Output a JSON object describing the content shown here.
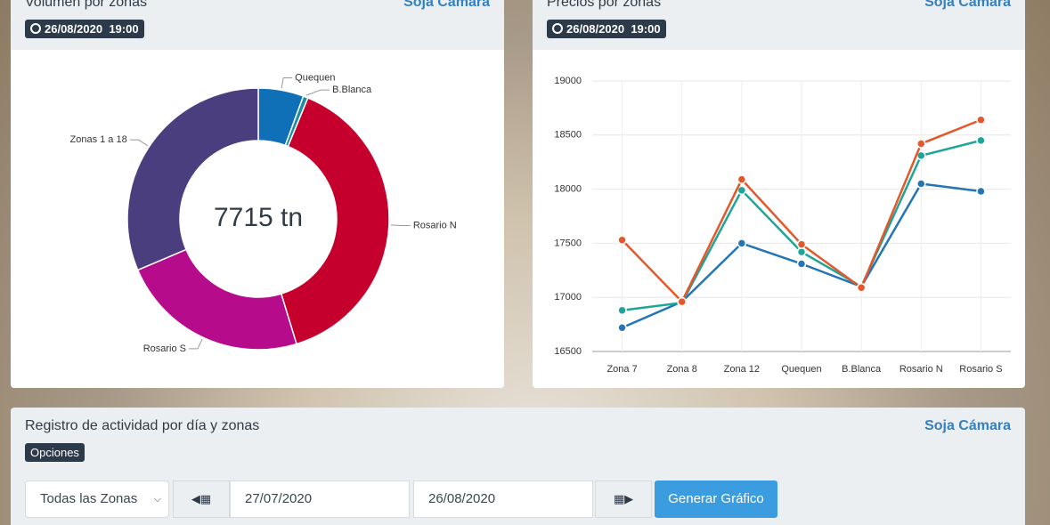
{
  "panels": [
    {
      "title": "Volumen por zonas",
      "link": "Soja Cámara",
      "date": "26/08/2020",
      "time": "19:00"
    },
    {
      "title": "Precios por zonas",
      "link": "Soja Cámara",
      "date": "26/08/2020",
      "time": "19:00"
    }
  ],
  "activity": {
    "title": "Registro de actividad por día y zonas",
    "link": "Soja Cámara",
    "options": "Opciones",
    "zone_select": "Todas las Zonas",
    "date_from": "27/07/2020",
    "date_to": "26/08/2020",
    "button": "Generar Gráfico"
  },
  "chart_data": [
    {
      "type": "donut",
      "center_label": "7715 tn",
      "categories": [
        "Quequen",
        "B.Blanca",
        "Rosario N",
        "Rosario S",
        "Zonas 1 a 18"
      ],
      "values": [
        432,
        46,
        3015,
        1800,
        2422
      ],
      "colors": [
        "#0f6fb7",
        "#1a8fa0",
        "#c5002c",
        "#b60b8b",
        "#4a3e7e"
      ]
    },
    {
      "type": "line",
      "categories": [
        "Zona 7",
        "Zona 8",
        "Zona 12",
        "Quequen",
        "B.Blanca",
        "Rosario N",
        "Rosario S"
      ],
      "series": [
        {
          "color": "#2475b4",
          "values": [
            16720,
            16960,
            17500,
            17310,
            17100,
            18050,
            17980
          ]
        },
        {
          "color": "#1fa597",
          "values": [
            16880,
            16950,
            17990,
            17420,
            17100,
            18310,
            18450
          ]
        },
        {
          "color": "#e2582b",
          "values": [
            17530,
            16960,
            18090,
            17490,
            17090,
            18420,
            18640
          ]
        }
      ],
      "ylim": [
        16500,
        19000
      ],
      "yticks": [
        16500,
        17000,
        17500,
        18000,
        18500,
        19000
      ],
      "grid": true
    }
  ]
}
